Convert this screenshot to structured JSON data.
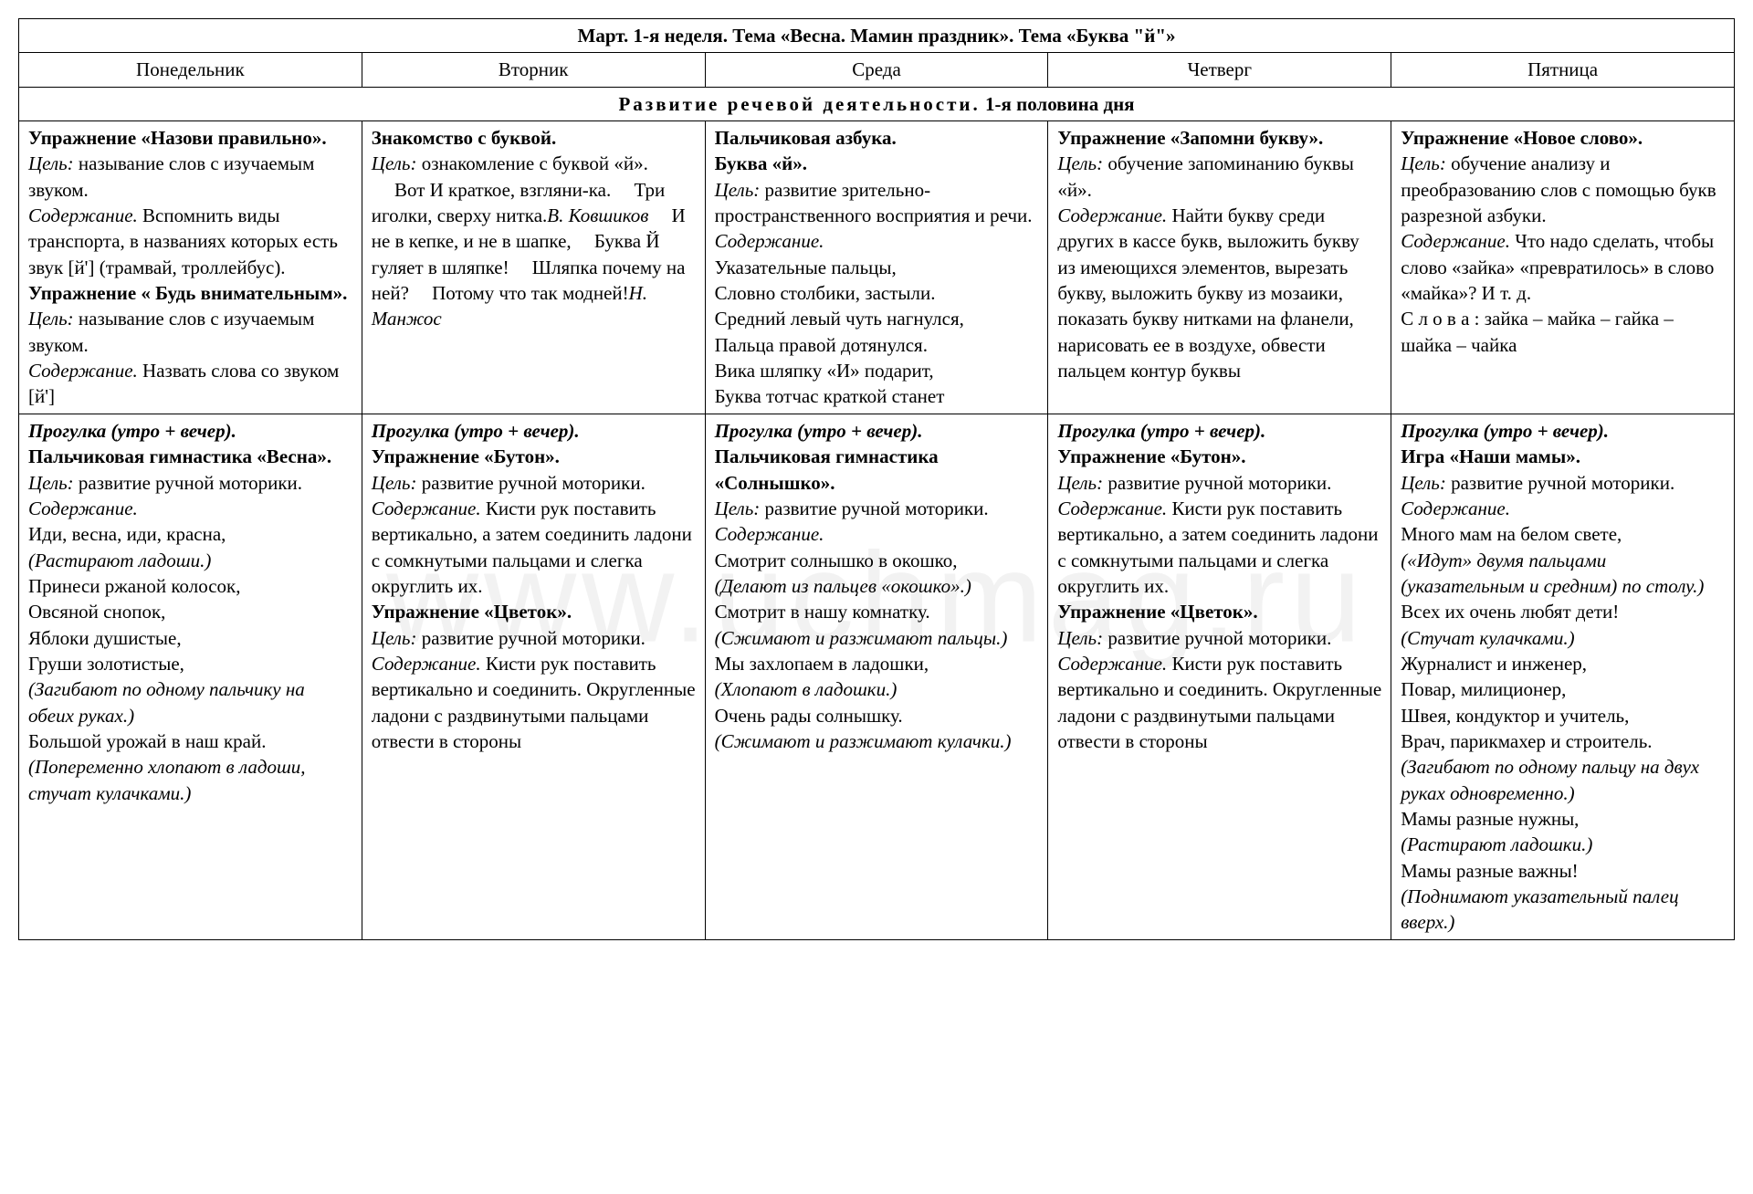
{
  "watermark": "www.uchmag.ru",
  "title": "Март. 1-я неделя.        Тема «Весна. Мамин праздник».        Тема «Буква \"й\"»",
  "days": {
    "mon": "Понедельник",
    "tue": "Вторник",
    "wed": "Среда",
    "thu": "Четверг",
    "fri": "Пятница"
  },
  "section1": "Развитие речевой деятельности.",
  "section1_suffix": " 1-я половина дня",
  "row1": {
    "mon": [
      {
        "t": "Упражнение «Назови правильно».",
        "cls": "bold"
      },
      {
        "t": "\n"
      },
      {
        "t": "Цель:",
        "cls": "italic"
      },
      {
        "t": " называние слов с изучаемым звуком."
      },
      {
        "t": "\n"
      },
      {
        "t": "Содержание.",
        "cls": "italic"
      },
      {
        "t": " Вспомнить виды транспорта, в названиях которых есть звук [й'] (трамвай, троллейбус)."
      },
      {
        "t": "\n"
      },
      {
        "t": "Упражнение « Будь внимательным».",
        "cls": "bold"
      },
      {
        "t": "\n"
      },
      {
        "t": "Цель:",
        "cls": "italic"
      },
      {
        "t": " называние слов с изучаемым звуком."
      },
      {
        "t": "\n"
      },
      {
        "t": "Содержание.",
        "cls": "italic"
      },
      {
        "t": " Назвать слова со звуком [й']"
      }
    ],
    "tue": [
      {
        "t": "Знакомство с буквой.",
        "cls": "bold"
      },
      {
        "t": "\n"
      },
      {
        "t": "Цель:",
        "cls": "italic"
      },
      {
        "t": " ознакомление с буквой «й»."
      },
      {
        "t": "\n"
      },
      {
        "t": "Вот И краткое, взгляни-ка.",
        "cls": "indent"
      },
      {
        "t": "Три иголки, сверху нитка.",
        "cls": "indent"
      },
      {
        "t": "В. Ковшиков",
        "cls": "italic right"
      },
      {
        "t": "И не в кепке, и не в шапке,",
        "cls": "indent"
      },
      {
        "t": "Буква Й гуляет в шляпке!",
        "cls": "indent"
      },
      {
        "t": "Шляпка почему на ней?",
        "cls": "indent"
      },
      {
        "t": "Потому что так модней!",
        "cls": "indent"
      },
      {
        "t": "Н. Манжос",
        "cls": "italic right"
      }
    ],
    "wed": [
      {
        "t": "Пальчиковая азбука.",
        "cls": "bold"
      },
      {
        "t": "\n"
      },
      {
        "t": "Буква «й».",
        "cls": "bold"
      },
      {
        "t": "\n"
      },
      {
        "t": "Цель:",
        "cls": "italic"
      },
      {
        "t": " развитие зрительно-пространственного восприятия и речи."
      },
      {
        "t": "\n"
      },
      {
        "t": "Содержание.",
        "cls": "italic"
      },
      {
        "t": "\n"
      },
      {
        "t": "Указательные пальцы,"
      },
      {
        "t": "\n"
      },
      {
        "t": "Словно столбики, застыли."
      },
      {
        "t": "\n"
      },
      {
        "t": "Средний левый чуть нагнулся,"
      },
      {
        "t": "\n"
      },
      {
        "t": "Пальца правой дотянулся."
      },
      {
        "t": "\n"
      },
      {
        "t": "Вика шляпку «И» подарит,"
      },
      {
        "t": "\n"
      },
      {
        "t": "Буква тотчас краткой станет"
      }
    ],
    "thu": [
      {
        "t": "Упражнение «Запомни букву».",
        "cls": "bold"
      },
      {
        "t": "\n"
      },
      {
        "t": "Цель:",
        "cls": "italic"
      },
      {
        "t": " обучение запоминанию буквы «й»."
      },
      {
        "t": "\n"
      },
      {
        "t": "Содержание.",
        "cls": "italic"
      },
      {
        "t": " Найти букву среди других в кассе букв, выложить букву из имеющихся элементов, вырезать букву, выложить букву из мозаики, показать букву нитками на фланели, нарисовать ее в воздухе, обвести пальцем контур буквы"
      }
    ],
    "fri": [
      {
        "t": "Упражнение «Новое слово».",
        "cls": "bold"
      },
      {
        "t": "\n"
      },
      {
        "t": "Цель:",
        "cls": "italic"
      },
      {
        "t": " обучение анализу и преобразованию слов с помощью букв разрезной азбуки."
      },
      {
        "t": "\n"
      },
      {
        "t": "Содержание.",
        "cls": "italic"
      },
      {
        "t": " Что надо сделать, чтобы слово «зайка» «превратилось» в слово «майка»? И т. д."
      },
      {
        "t": "\n"
      },
      {
        "t": "С л о в а : зайка – майка – гайка – шайка – чайка"
      }
    ]
  },
  "row2": {
    "mon": [
      {
        "t": "Прогулка (утро + вечер).",
        "cls": "bolditalic"
      },
      {
        "t": "\n"
      },
      {
        "t": "Пальчиковая гимнастика «Весна».",
        "cls": "bold"
      },
      {
        "t": "\n"
      },
      {
        "t": "Цель:",
        "cls": "italic"
      },
      {
        "t": " развитие ручной моторики."
      },
      {
        "t": "\n"
      },
      {
        "t": "Содержание.",
        "cls": "italic"
      },
      {
        "t": "\n"
      },
      {
        "t": "Иди, весна, иди, красна,"
      },
      {
        "t": "\n"
      },
      {
        "t": "(Растирают ладоши.)",
        "cls": "italic"
      },
      {
        "t": "\n"
      },
      {
        "t": "Принеси ржаной колосок,"
      },
      {
        "t": "\n"
      },
      {
        "t": "Овсяной снопок,"
      },
      {
        "t": "\n"
      },
      {
        "t": "Яблоки душистые,"
      },
      {
        "t": "\n"
      },
      {
        "t": "Груши золотистые,"
      },
      {
        "t": "\n"
      },
      {
        "t": "(Загибают по одному пальчику на обеих руках.)",
        "cls": "italic"
      },
      {
        "t": "\n"
      },
      {
        "t": "Большой урожай в наш край."
      },
      {
        "t": "\n"
      },
      {
        "t": "(Попеременно хлопают в ладоши, стучат кулачками.)",
        "cls": "italic"
      }
    ],
    "tue": [
      {
        "t": "Прогулка (утро + вечер).",
        "cls": "bolditalic"
      },
      {
        "t": "\n"
      },
      {
        "t": "Упражнение «Бутон».",
        "cls": "bold"
      },
      {
        "t": "\n"
      },
      {
        "t": "Цель:",
        "cls": "italic"
      },
      {
        "t": " развитие ручной моторики."
      },
      {
        "t": "\n"
      },
      {
        "t": "Содержание.",
        "cls": "italic"
      },
      {
        "t": " Кисти рук поставить вертикально, а затем соединить ладони с сомкнутыми пальцами и слегка округлить их."
      },
      {
        "t": "\n"
      },
      {
        "t": "Упражнение «Цветок».",
        "cls": "bold"
      },
      {
        "t": "\n"
      },
      {
        "t": "Цель:",
        "cls": "italic"
      },
      {
        "t": " развитие ручной моторики."
      },
      {
        "t": "\n"
      },
      {
        "t": "Содержание.",
        "cls": "italic"
      },
      {
        "t": " Кисти рук поставить вертикально и соединить. Округленные ладони с раздвинутыми пальцами отвести в стороны"
      }
    ],
    "wed": [
      {
        "t": "Прогулка (утро + вечер).",
        "cls": "bolditalic"
      },
      {
        "t": "\n"
      },
      {
        "t": "Пальчиковая гимнастика «Солнышко».",
        "cls": "bold"
      },
      {
        "t": "\n"
      },
      {
        "t": "Цель:",
        "cls": "italic"
      },
      {
        "t": " развитие ручной моторики."
      },
      {
        "t": "\n"
      },
      {
        "t": "Содержание.",
        "cls": "italic"
      },
      {
        "t": "\n"
      },
      {
        "t": "Смотрит солнышко в окошко,"
      },
      {
        "t": "\n"
      },
      {
        "t": "(Делают из пальцев «окошко».)",
        "cls": "italic"
      },
      {
        "t": "\n"
      },
      {
        "t": "Смотрит в нашу комнатку."
      },
      {
        "t": "\n"
      },
      {
        "t": "(Сжимают и разжимают пальцы.)",
        "cls": "italic"
      },
      {
        "t": "\n"
      },
      {
        "t": "Мы захлопаем в ладошки,"
      },
      {
        "t": "\n"
      },
      {
        "t": "(Хлопают в ладошки.)",
        "cls": "italic"
      },
      {
        "t": "\n"
      },
      {
        "t": "Очень рады солнышку."
      },
      {
        "t": "\n"
      },
      {
        "t": "(Сжимают и разжимают кулачки.)",
        "cls": "italic"
      }
    ],
    "thu": [
      {
        "t": "Прогулка (утро + вечер).",
        "cls": "bolditalic"
      },
      {
        "t": "\n"
      },
      {
        "t": "Упражнение «Бутон».",
        "cls": "bold"
      },
      {
        "t": "\n"
      },
      {
        "t": "Цель:",
        "cls": "italic"
      },
      {
        "t": " развитие ручной моторики."
      },
      {
        "t": "\n"
      },
      {
        "t": "Содержание.",
        "cls": "italic"
      },
      {
        "t": " Кисти рук поставить вертикально, а затем соединить ладони с сомкнутыми пальцами и слегка округлить их."
      },
      {
        "t": "\n"
      },
      {
        "t": "Упражнение «Цветок».",
        "cls": "bold"
      },
      {
        "t": "\n"
      },
      {
        "t": "Цель:",
        "cls": "italic"
      },
      {
        "t": " развитие ручной моторики."
      },
      {
        "t": "\n"
      },
      {
        "t": "Содержание.",
        "cls": "italic"
      },
      {
        "t": " Кисти рук поставить вертикально и соединить. Округленные ладони с раздвинутыми пальцами отвести в стороны"
      }
    ],
    "fri": [
      {
        "t": "Прогулка (утро + вечер).",
        "cls": "bolditalic"
      },
      {
        "t": "\n"
      },
      {
        "t": "Игра «Наши мамы».",
        "cls": "bold"
      },
      {
        "t": "\n"
      },
      {
        "t": "Цель:",
        "cls": "italic"
      },
      {
        "t": " развитие ручной моторики."
      },
      {
        "t": "\n"
      },
      {
        "t": "Содержание.",
        "cls": "italic"
      },
      {
        "t": "\n"
      },
      {
        "t": "Много мам на белом свете,"
      },
      {
        "t": "\n"
      },
      {
        "t": "(«Идут» двумя пальцами (указательным и средним) по столу.)",
        "cls": "italic"
      },
      {
        "t": "\n"
      },
      {
        "t": "Всех их очень любят дети!"
      },
      {
        "t": "\n"
      },
      {
        "t": "(Стучат кулачками.)",
        "cls": "italic"
      },
      {
        "t": "\n"
      },
      {
        "t": "Журналист и инженер,"
      },
      {
        "t": "\n"
      },
      {
        "t": "Повар, милиционер,"
      },
      {
        "t": "\n"
      },
      {
        "t": "Швея, кондуктор и учитель,"
      },
      {
        "t": "\n"
      },
      {
        "t": "Врач, парикмахер и строитель."
      },
      {
        "t": "\n"
      },
      {
        "t": "(Загибают по одному пальцу на двух руках одновременно.)",
        "cls": "italic"
      },
      {
        "t": "\n"
      },
      {
        "t": "Мамы разные нужны,"
      },
      {
        "t": "\n"
      },
      {
        "t": "(Растирают ладошки.)",
        "cls": "italic"
      },
      {
        "t": "\n"
      },
      {
        "t": "Мамы разные важны!"
      },
      {
        "t": "\n"
      },
      {
        "t": "(Поднимают указательный палец вверх.)",
        "cls": "italic"
      }
    ]
  }
}
